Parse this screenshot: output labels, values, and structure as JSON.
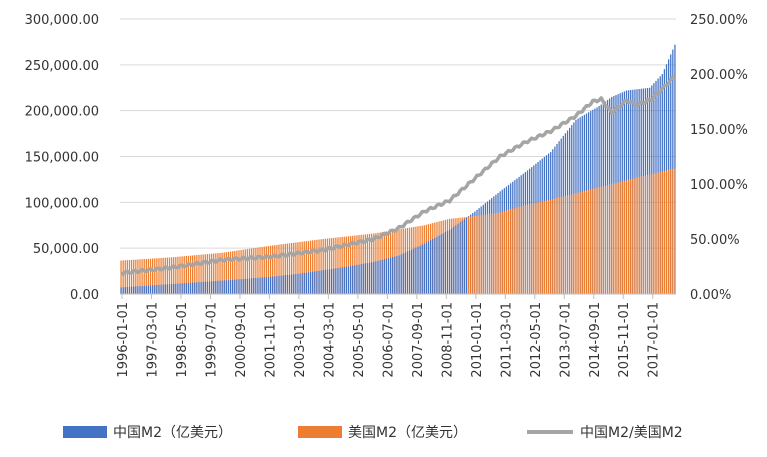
{
  "chart_data": {
    "type": "bar",
    "title": "",
    "xlabel": "",
    "ylabel": "",
    "x_start": "1996-01",
    "x_end": "2017-12",
    "x_tick_labels": [
      "1996-01-01",
      "1997-03-01",
      "1998-05-01",
      "1999-07-01",
      "2000-09-01",
      "2001-11-01",
      "2003-01-01",
      "2004-03-01",
      "2005-05-01",
      "2006-07-01",
      "2007-09-01",
      "2008-11-01",
      "2010-01-01",
      "2011-03-01",
      "2012-05-01",
      "2013-07-01",
      "2014-09-01",
      "2015-11-01",
      "2017-01-01"
    ],
    "y_left": {
      "min": 0,
      "max": 300000,
      "ticks": [
        "0.00",
        "50,000.00",
        "100,000.00",
        "150,000.00",
        "200,000.00",
        "250,000.00",
        "300,000.00"
      ]
    },
    "y_right": {
      "min": 0,
      "max": 250,
      "ticks": [
        "0.00%",
        "50.00%",
        "100.00%",
        "150.00%",
        "200.00%",
        "250.00%"
      ]
    },
    "grid": true,
    "legend_position": "bottom",
    "series": [
      {
        "name": "中国M2（亿美元）",
        "type": "bar",
        "axis": "left",
        "color": "#4472C4",
        "anchors": [
          [
            "1996-01",
            7200
          ],
          [
            "1997-01",
            9000
          ],
          [
            "1998-01",
            10800
          ],
          [
            "1999-01",
            12800
          ],
          [
            "2000-01",
            14700
          ],
          [
            "2001-01",
            16700
          ],
          [
            "2002-01",
            19000
          ],
          [
            "2003-01",
            22000
          ],
          [
            "2004-01",
            26000
          ],
          [
            "2005-01",
            30000
          ],
          [
            "2006-01",
            35000
          ],
          [
            "2007-01",
            42000
          ],
          [
            "2008-01",
            55000
          ],
          [
            "2009-01",
            70000
          ],
          [
            "2010-01",
            90000
          ],
          [
            "2011-01",
            112000
          ],
          [
            "2012-01",
            133000
          ],
          [
            "2013-01",
            155000
          ],
          [
            "2014-01",
            190000
          ],
          [
            "2014-12",
            205000
          ],
          [
            "2015-06",
            215000
          ],
          [
            "2016-01",
            222000
          ],
          [
            "2016-12",
            225000
          ],
          [
            "2017-06",
            240000
          ],
          [
            "2017-12",
            272000
          ]
        ]
      },
      {
        "name": "美国M2（亿美元）",
        "type": "bar",
        "axis": "left",
        "color": "#ED7D31",
        "anchors": [
          [
            "1996-01",
            36500
          ],
          [
            "1998-01",
            40000
          ],
          [
            "2000-01",
            45000
          ],
          [
            "2002-01",
            53000
          ],
          [
            "2004-01",
            60000
          ],
          [
            "2006-01",
            66000
          ],
          [
            "2008-01",
            75000
          ],
          [
            "2009-01",
            82000
          ],
          [
            "2010-01",
            85000
          ],
          [
            "2011-01",
            89000
          ],
          [
            "2012-01",
            97000
          ],
          [
            "2013-01",
            103000
          ],
          [
            "2014-01",
            110000
          ],
          [
            "2015-01",
            117000
          ],
          [
            "2016-01",
            124000
          ],
          [
            "2017-01",
            131000
          ],
          [
            "2017-12",
            137000
          ]
        ]
      },
      {
        "name": "中国M2/美国M2",
        "type": "line",
        "axis": "right",
        "color": "#A5A5A5",
        "anchors": [
          [
            "1996-01",
            19
          ],
          [
            "1998-01",
            24
          ],
          [
            "2000-01",
            31
          ],
          [
            "2002-01",
            34
          ],
          [
            "2004-01",
            40
          ],
          [
            "2006-01",
            50
          ],
          [
            "2007-01",
            60
          ],
          [
            "2008-01",
            75
          ],
          [
            "2009-01",
            85
          ],
          [
            "2010-01",
            105
          ],
          [
            "2011-01",
            125
          ],
          [
            "2012-01",
            138
          ],
          [
            "2013-01",
            148
          ],
          [
            "2014-01",
            162
          ],
          [
            "2014-09",
            175
          ],
          [
            "2015-01",
            177
          ],
          [
            "2015-06",
            165
          ],
          [
            "2016-01",
            176
          ],
          [
            "2016-06",
            172
          ],
          [
            "2017-01",
            177
          ],
          [
            "2017-12",
            198
          ]
        ]
      }
    ]
  }
}
